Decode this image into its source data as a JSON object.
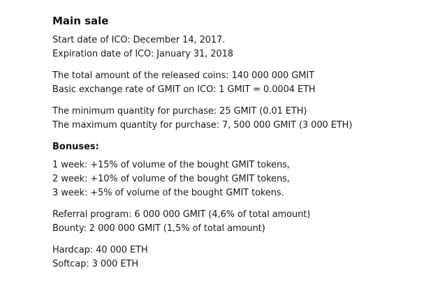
{
  "main_sale": {
    "title": "Main sale",
    "dates": [
      "Start date of ICO: December 14, 2017.",
      "Expiration date of ICO: January 31, 2018"
    ],
    "coins": [
      "The total amount of the released coins: 140 000 000 GMIT",
      "Basic exchange rate of GMIT on ICO: 1 GMIT = 0.0004 ETH"
    ],
    "quantity": [
      "The minimum quantity for purchase: 25 GMIT (0.01 ETH)",
      "The maximum quantity for purchase: 7, 500 000 GMIT (3 000 ETH)"
    ]
  },
  "bonuses": {
    "title": "Bonuses:",
    "weeks": [
      "1 week: +15% of volume of the bought GMIT tokens,",
      "2 week: +10% of volume of the bought GMIT tokens,",
      "3 week: +5% of volume of the bought GMIT tokens."
    ],
    "programs": [
      "Referral program: 6 000 000 GMIT (4,6% of total amount)",
      "Bounty: 2 000 000 GMIT (1,5% of total amount)"
    ],
    "caps": [
      "Hardcap: 40 000 ETH",
      "Softcap: 3 000 ETH"
    ]
  }
}
